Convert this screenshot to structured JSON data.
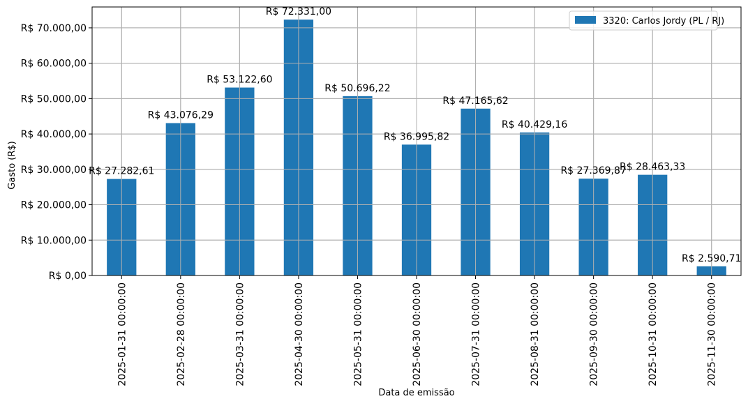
{
  "chart_data": {
    "type": "bar",
    "xlabel": "Data de emissão",
    "ylabel": "Gasto (R$)",
    "ylim": [
      0,
      75900
    ],
    "grid": true,
    "legend_placement": "top-right",
    "categories": [
      "2025-01-31 00:00:00",
      "2025-02-28 00:00:00",
      "2025-03-31 00:00:00",
      "2025-04-30 00:00:00",
      "2025-05-31 00:00:00",
      "2025-06-30 00:00:00",
      "2025-07-31 00:00:00",
      "2025-08-31 00:00:00",
      "2025-09-30 00:00:00",
      "2025-10-31 00:00:00",
      "2025-11-30 00:00:00"
    ],
    "series": [
      {
        "name": "3320: Carlos Jordy (PL / RJ)",
        "color": "#1f77b4",
        "values": [
          27282.61,
          43076.29,
          53122.6,
          72331.0,
          50696.22,
          36995.82,
          47165.62,
          40429.16,
          27369.87,
          28463.33,
          2590.71
        ],
        "labels": [
          "R$ 27.282,61",
          "R$ 43.076,29",
          "R$ 53.122,60",
          "R$ 72.331,00",
          "R$ 50.696,22",
          "R$ 36.995,82",
          "R$ 47.165,62",
          "R$ 40.429,16",
          "R$ 27.369,87",
          "R$ 28.463,33",
          "R$ 2.590,71"
        ]
      }
    ],
    "yticks": [
      {
        "value": 0,
        "label": "R$ 0,00"
      },
      {
        "value": 10000,
        "label": "R$ 10.000,00"
      },
      {
        "value": 20000,
        "label": "R$ 20.000,00"
      },
      {
        "value": 30000,
        "label": "R$ 30.000,00"
      },
      {
        "value": 40000,
        "label": "R$ 40.000,00"
      },
      {
        "value": 50000,
        "label": "R$ 50.000,00"
      },
      {
        "value": 60000,
        "label": "R$ 60.000,00"
      },
      {
        "value": 70000,
        "label": "R$ 70.000,00"
      }
    ],
    "grid_color": "#b0b0b0"
  }
}
